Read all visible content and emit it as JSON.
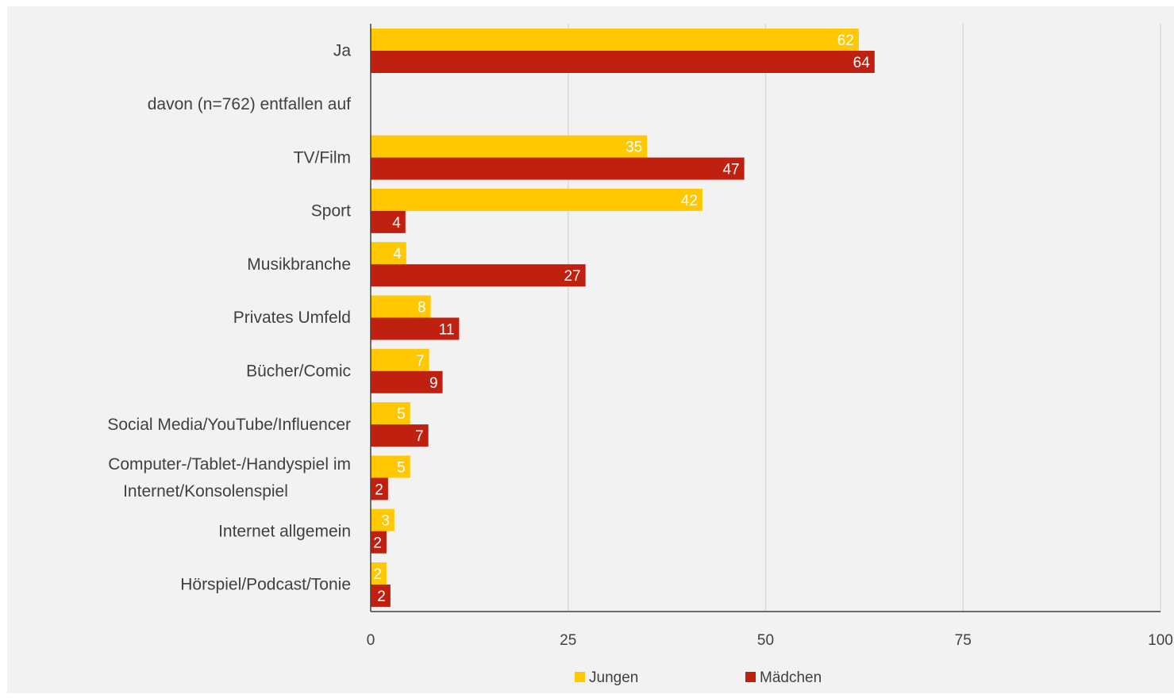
{
  "chart_data": {
    "type": "bar",
    "orientation": "horizontal",
    "categories": [
      [
        "Ja"
      ],
      [
        "davon (n=762) entfallen auf"
      ],
      [
        "TV/Film"
      ],
      [
        "Sport"
      ],
      [
        "Musikbranche"
      ],
      [
        "Privates Umfeld"
      ],
      [
        "Bücher/Comic"
      ],
      [
        "Social Media/YouTube/Influencer"
      ],
      [
        "Computer-/Tablet-/Handyspiel im",
        "Internet/Konsolenspiel"
      ],
      [
        "Internet allgemein"
      ],
      [
        "Hörspiel/Podcast/Tonie"
      ]
    ],
    "series": [
      {
        "name": "Jungen",
        "color": "#ffc800",
        "values": [
          61.8,
          null,
          35,
          42,
          4.5,
          7.6,
          7.4,
          5,
          5,
          3,
          2
        ],
        "labels": [
          "62",
          "",
          "35",
          "42",
          "4",
          "8",
          "7",
          "5",
          "5",
          "3",
          "2"
        ]
      },
      {
        "name": "Mädchen",
        "color": "#c0200f",
        "values": [
          63.8,
          null,
          47.3,
          4.4,
          27.2,
          11.2,
          9.1,
          7.3,
          2.2,
          2,
          2.5
        ],
        "labels": [
          "64",
          "",
          "47",
          "4",
          "27",
          "11",
          "9",
          "7",
          "2",
          "2",
          "2"
        ]
      }
    ],
    "xlim": [
      0,
      100
    ],
    "xticks": [
      "0",
      "25",
      "50",
      "75",
      "100"
    ],
    "gridlines": true,
    "legend": "bottom",
    "title": "",
    "xlabel": "",
    "ylabel": ""
  }
}
